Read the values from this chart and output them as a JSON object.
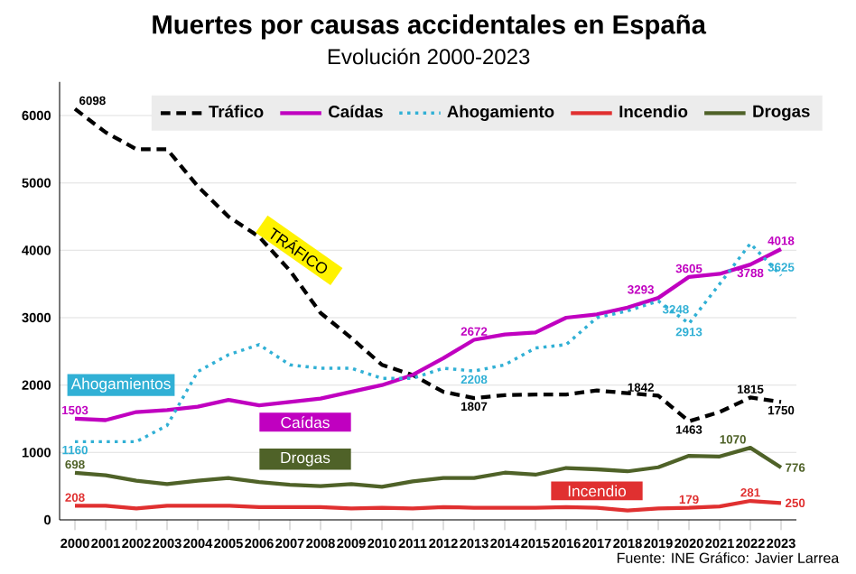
{
  "chart_data": {
    "type": "line",
    "title": "Muertes por causas accidentales en España",
    "subtitle": "Evolución 2000-2023",
    "categories": [
      "2000",
      "2001",
      "2002",
      "2003",
      "2004",
      "2005",
      "2006",
      "2007",
      "2008",
      "2009",
      "2010",
      "2011",
      "2012",
      "2013",
      "2014",
      "2015",
      "2016",
      "2017",
      "2018",
      "2019",
      "2020",
      "2021",
      "2022",
      "2023"
    ],
    "series": [
      {
        "name": "Tráfico",
        "color": "#000000",
        "line_style": "dashed",
        "values": [
          6098,
          5750,
          5500,
          5500,
          4950,
          4500,
          4200,
          3700,
          3070,
          2700,
          2300,
          2150,
          1900,
          1807,
          1850,
          1860,
          1860,
          1920,
          1880,
          1842,
          1463,
          1600,
          1815,
          1750
        ],
        "value_labels": [
          "6098",
          null,
          null,
          null,
          null,
          null,
          null,
          null,
          null,
          null,
          null,
          null,
          null,
          "1807",
          null,
          null,
          null,
          null,
          null,
          "1842",
          "1463",
          null,
          "1815",
          "1750"
        ]
      },
      {
        "name": "Caídas",
        "color": "#c000c0",
        "line_style": "solid",
        "values": [
          1503,
          1480,
          1600,
          1630,
          1680,
          1780,
          1700,
          1750,
          1800,
          1900,
          2000,
          2150,
          2400,
          2672,
          2750,
          2780,
          3000,
          3050,
          3150,
          3293,
          3605,
          3650,
          3788,
          4018
        ],
        "value_labels": [
          "1503",
          null,
          null,
          null,
          null,
          null,
          null,
          null,
          null,
          null,
          null,
          null,
          null,
          "2672",
          null,
          null,
          null,
          null,
          null,
          "3293",
          "3605",
          null,
          "3788",
          "4018"
        ]
      },
      {
        "name": "Ahogamiento",
        "color": "#31b0d5",
        "line_style": "dotted",
        "values": [
          1160,
          1160,
          1160,
          1400,
          2200,
          2450,
          2600,
          2300,
          2250,
          2250,
          2100,
          2100,
          2250,
          2208,
          2300,
          2550,
          2600,
          3000,
          3100,
          3248,
          2913,
          3500,
          4100,
          3625
        ],
        "value_labels": [
          "1160",
          null,
          null,
          null,
          null,
          null,
          null,
          null,
          null,
          null,
          null,
          null,
          null,
          "2208",
          null,
          null,
          null,
          null,
          null,
          "3248",
          "2913",
          null,
          null,
          "3625"
        ]
      },
      {
        "name": "Incendio",
        "color": "#e03030",
        "line_style": "solid",
        "values": [
          208,
          210,
          170,
          210,
          210,
          210,
          190,
          190,
          190,
          170,
          180,
          170,
          190,
          180,
          180,
          180,
          190,
          180,
          140,
          170,
          179,
          200,
          281,
          250
        ],
        "value_labels": [
          "208",
          null,
          null,
          null,
          null,
          null,
          null,
          null,
          null,
          null,
          null,
          null,
          null,
          null,
          null,
          null,
          null,
          null,
          null,
          null,
          "179",
          null,
          "281",
          "250"
        ]
      },
      {
        "name": "Drogas",
        "color": "#4f6228",
        "line_style": "solid",
        "values": [
          698,
          660,
          580,
          530,
          580,
          620,
          560,
          520,
          500,
          530,
          490,
          570,
          620,
          620,
          700,
          670,
          770,
          750,
          720,
          780,
          950,
          940,
          1070,
          776
        ],
        "value_labels": [
          "698",
          null,
          null,
          null,
          null,
          null,
          null,
          null,
          null,
          null,
          null,
          null,
          null,
          null,
          null,
          null,
          null,
          null,
          null,
          null,
          null,
          null,
          "1070",
          "776"
        ]
      }
    ],
    "ylim": [
      0,
      6500
    ],
    "yticks": [
      0,
      1000,
      2000,
      3000,
      4000,
      5000,
      6000
    ],
    "grid": "y",
    "legend": "top",
    "marker": "none",
    "annotations": [
      "TRÁFICO",
      "Caídas",
      "Ahogamientos",
      "Incendio",
      "Drogas",
      "Fuente: INE   Gráfico: Javier Larrea"
    ]
  }
}
